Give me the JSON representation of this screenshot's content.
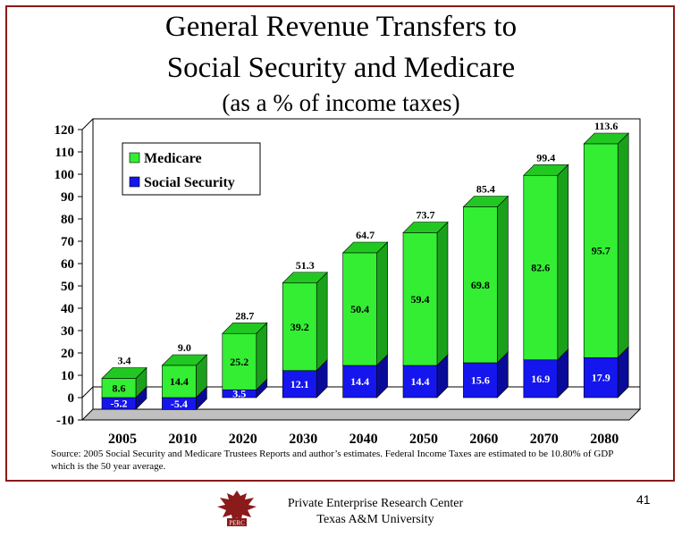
{
  "slide": {
    "title_lines": [
      "General Revenue Transfers to",
      "Social Security and Medicare",
      "(as a % of income taxes)"
    ],
    "source_note": "Source: 2005 Social Security and Medicare Trustees Reports and author’s estimates. Federal Income Taxes are estimated to be 10.80% of GDP which is the 50 year average.",
    "slide_number": "41",
    "footer_org_lines": [
      "Private Enterprise Research Center",
      "Texas A&M University"
    ],
    "logo_text": "PERC"
  },
  "colors": {
    "medicare": "#33ee33",
    "medicare_side": "#1aa01a",
    "medicare_top": "#22c822",
    "social_security": "#1515ee",
    "social_security_side": "#0a0a99",
    "social_security_top": "#0d0dbb",
    "frame": "#8b1a1a",
    "floor": "#c0c0c0"
  },
  "chart_data": {
    "type": "bar",
    "stacked": true,
    "categories": [
      "2005",
      "2010",
      "2020",
      "2030",
      "2040",
      "2050",
      "2060",
      "2070",
      "2080"
    ],
    "series": [
      {
        "name": "Medicare",
        "values": [
          8.6,
          14.4,
          25.2,
          39.2,
          50.4,
          59.4,
          69.8,
          82.6,
          95.7
        ],
        "labels": [
          "8.6",
          "14.4",
          "25.2",
          "39.2",
          "50.4",
          "59.4",
          "69.8",
          "82.6",
          "95.7"
        ]
      },
      {
        "name": "Social Security",
        "values": [
          -5.2,
          -5.4,
          3.5,
          12.1,
          14.4,
          14.4,
          15.6,
          16.9,
          17.9
        ],
        "labels": [
          "-5.2",
          "-5.4",
          "3.5",
          "12.1",
          "14.4",
          "14.4",
          "15.6",
          "16.9",
          "17.9"
        ]
      }
    ],
    "totals": [
      3.4,
      9.0,
      28.7,
      51.3,
      64.7,
      73.7,
      85.4,
      99.4,
      113.6
    ],
    "total_labels": [
      "3.4",
      "9.0",
      "28.7",
      "51.3",
      "64.7",
      "73.7",
      "85.4",
      "99.4",
      "113.6"
    ],
    "yticks": [
      "-10",
      "0",
      "10",
      "20",
      "30",
      "40",
      "50",
      "60",
      "70",
      "80",
      "90",
      "100",
      "110",
      "120"
    ],
    "ylim": [
      -10,
      120
    ],
    "legend": {
      "placement": "top-left",
      "entries": [
        "Medicare",
        "Social Security"
      ]
    },
    "grid": false
  }
}
